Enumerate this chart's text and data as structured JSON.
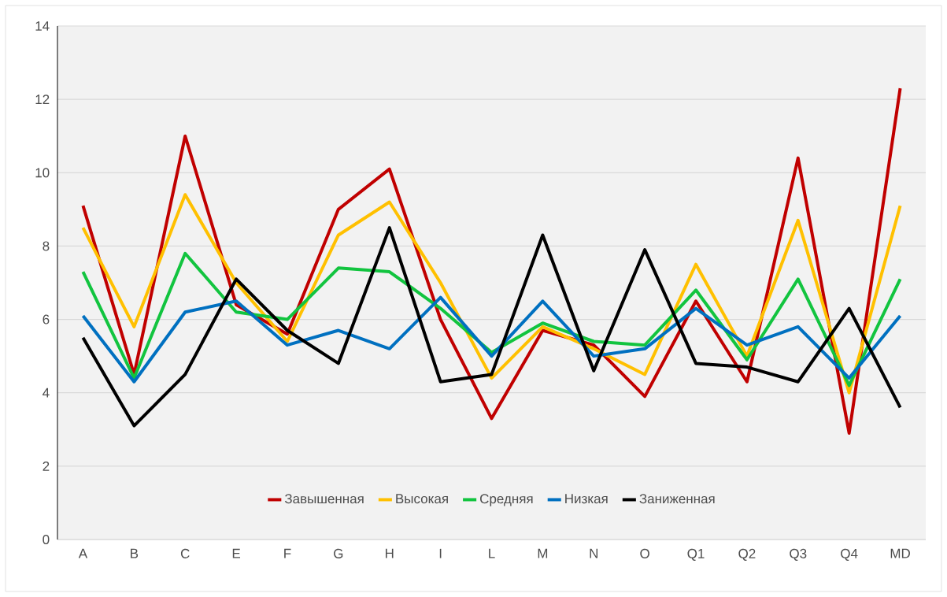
{
  "chart_data": {
    "type": "line",
    "categories": [
      "A",
      "B",
      "C",
      "E",
      "F",
      "G",
      "H",
      "I",
      "L",
      "M",
      "N",
      "O",
      "Q1",
      "Q2",
      "Q3",
      "Q4",
      "MD"
    ],
    "series": [
      {
        "name": "Завышенная",
        "color": "#c00000",
        "values": [
          9.1,
          4.5,
          11.0,
          6.4,
          5.6,
          9.0,
          10.1,
          6.0,
          3.3,
          5.7,
          5.3,
          3.9,
          6.5,
          4.3,
          10.4,
          2.9,
          12.3
        ]
      },
      {
        "name": "Высокая",
        "color": "#ffc000",
        "values": [
          8.5,
          5.8,
          9.4,
          7.0,
          5.4,
          8.3,
          9.2,
          7.0,
          4.4,
          5.8,
          5.2,
          4.5,
          7.5,
          5.0,
          8.7,
          4.0,
          9.1
        ]
      },
      {
        "name": "Средняя",
        "color": "#12c43f",
        "values": [
          7.3,
          4.4,
          7.8,
          6.2,
          6.0,
          7.4,
          7.3,
          6.3,
          5.1,
          5.9,
          5.4,
          5.3,
          6.8,
          4.9,
          7.1,
          4.2,
          7.1
        ]
      },
      {
        "name": "Низкая",
        "color": "#0070c0",
        "values": [
          6.1,
          4.3,
          6.2,
          6.5,
          5.3,
          5.7,
          5.2,
          6.6,
          5.0,
          6.5,
          5.0,
          5.2,
          6.3,
          5.3,
          5.8,
          4.4,
          6.1
        ]
      },
      {
        "name": "Заниженная",
        "color": "#000000",
        "values": [
          5.5,
          3.1,
          4.5,
          7.1,
          5.7,
          4.8,
          8.5,
          4.3,
          4.5,
          8.3,
          4.6,
          7.9,
          4.8,
          4.7,
          4.3,
          6.3,
          3.6
        ]
      }
    ],
    "ylim": [
      0,
      14
    ],
    "yticks": [
      0,
      2,
      4,
      6,
      8,
      10,
      12,
      14
    ],
    "grid": "y",
    "legend": "bottom",
    "marker": "none",
    "line_style": "solid"
  }
}
